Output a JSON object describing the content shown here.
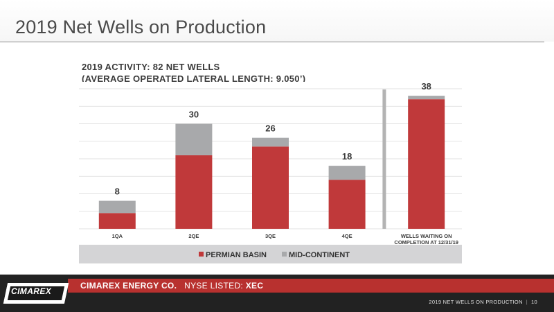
{
  "slide": {
    "title": "2019 Net Wells on Production",
    "heading_line1": "2019 ACTIVITY: 82 NET WELLS",
    "heading_line2": "(AVERAGE OPERATED LATERAL LENGTH: 9,050’)"
  },
  "chart_data": {
    "type": "bar",
    "stacked": true,
    "categories": [
      "1QA",
      "2QE",
      "3QE",
      "4QE",
      "WELLS WAITING ON COMPLETION AT 12/31/19"
    ],
    "category_lines": [
      [
        "1QA"
      ],
      [
        "2QE"
      ],
      [
        "3QE"
      ],
      [
        "4QE"
      ],
      [
        "WELLS WAITING ON",
        "COMPLETION AT 12/31/19"
      ]
    ],
    "series": [
      {
        "name": "PERMIAN BASIN",
        "color": "#c0393a",
        "values": [
          4.5,
          21,
          23.5,
          14,
          37
        ]
      },
      {
        "name": "MID-CONTINENT",
        "color": "#a8a9ab",
        "values": [
          3.5,
          9,
          2.5,
          4,
          1
        ]
      }
    ],
    "totals": [
      8,
      30,
      26,
      18,
      38
    ],
    "ylim": [
      0,
      40
    ],
    "grid": true,
    "legend_position": "bottom",
    "separator_before_last": true
  },
  "footer": {
    "logo_text": "CIMAREX",
    "company": "CIMAREX ENERGY CO.",
    "listing": "NYSE LISTED:",
    "ticker": "XEC",
    "page_label": "2019 NET WELLS ON PRODUCTION",
    "page_number": "10"
  }
}
